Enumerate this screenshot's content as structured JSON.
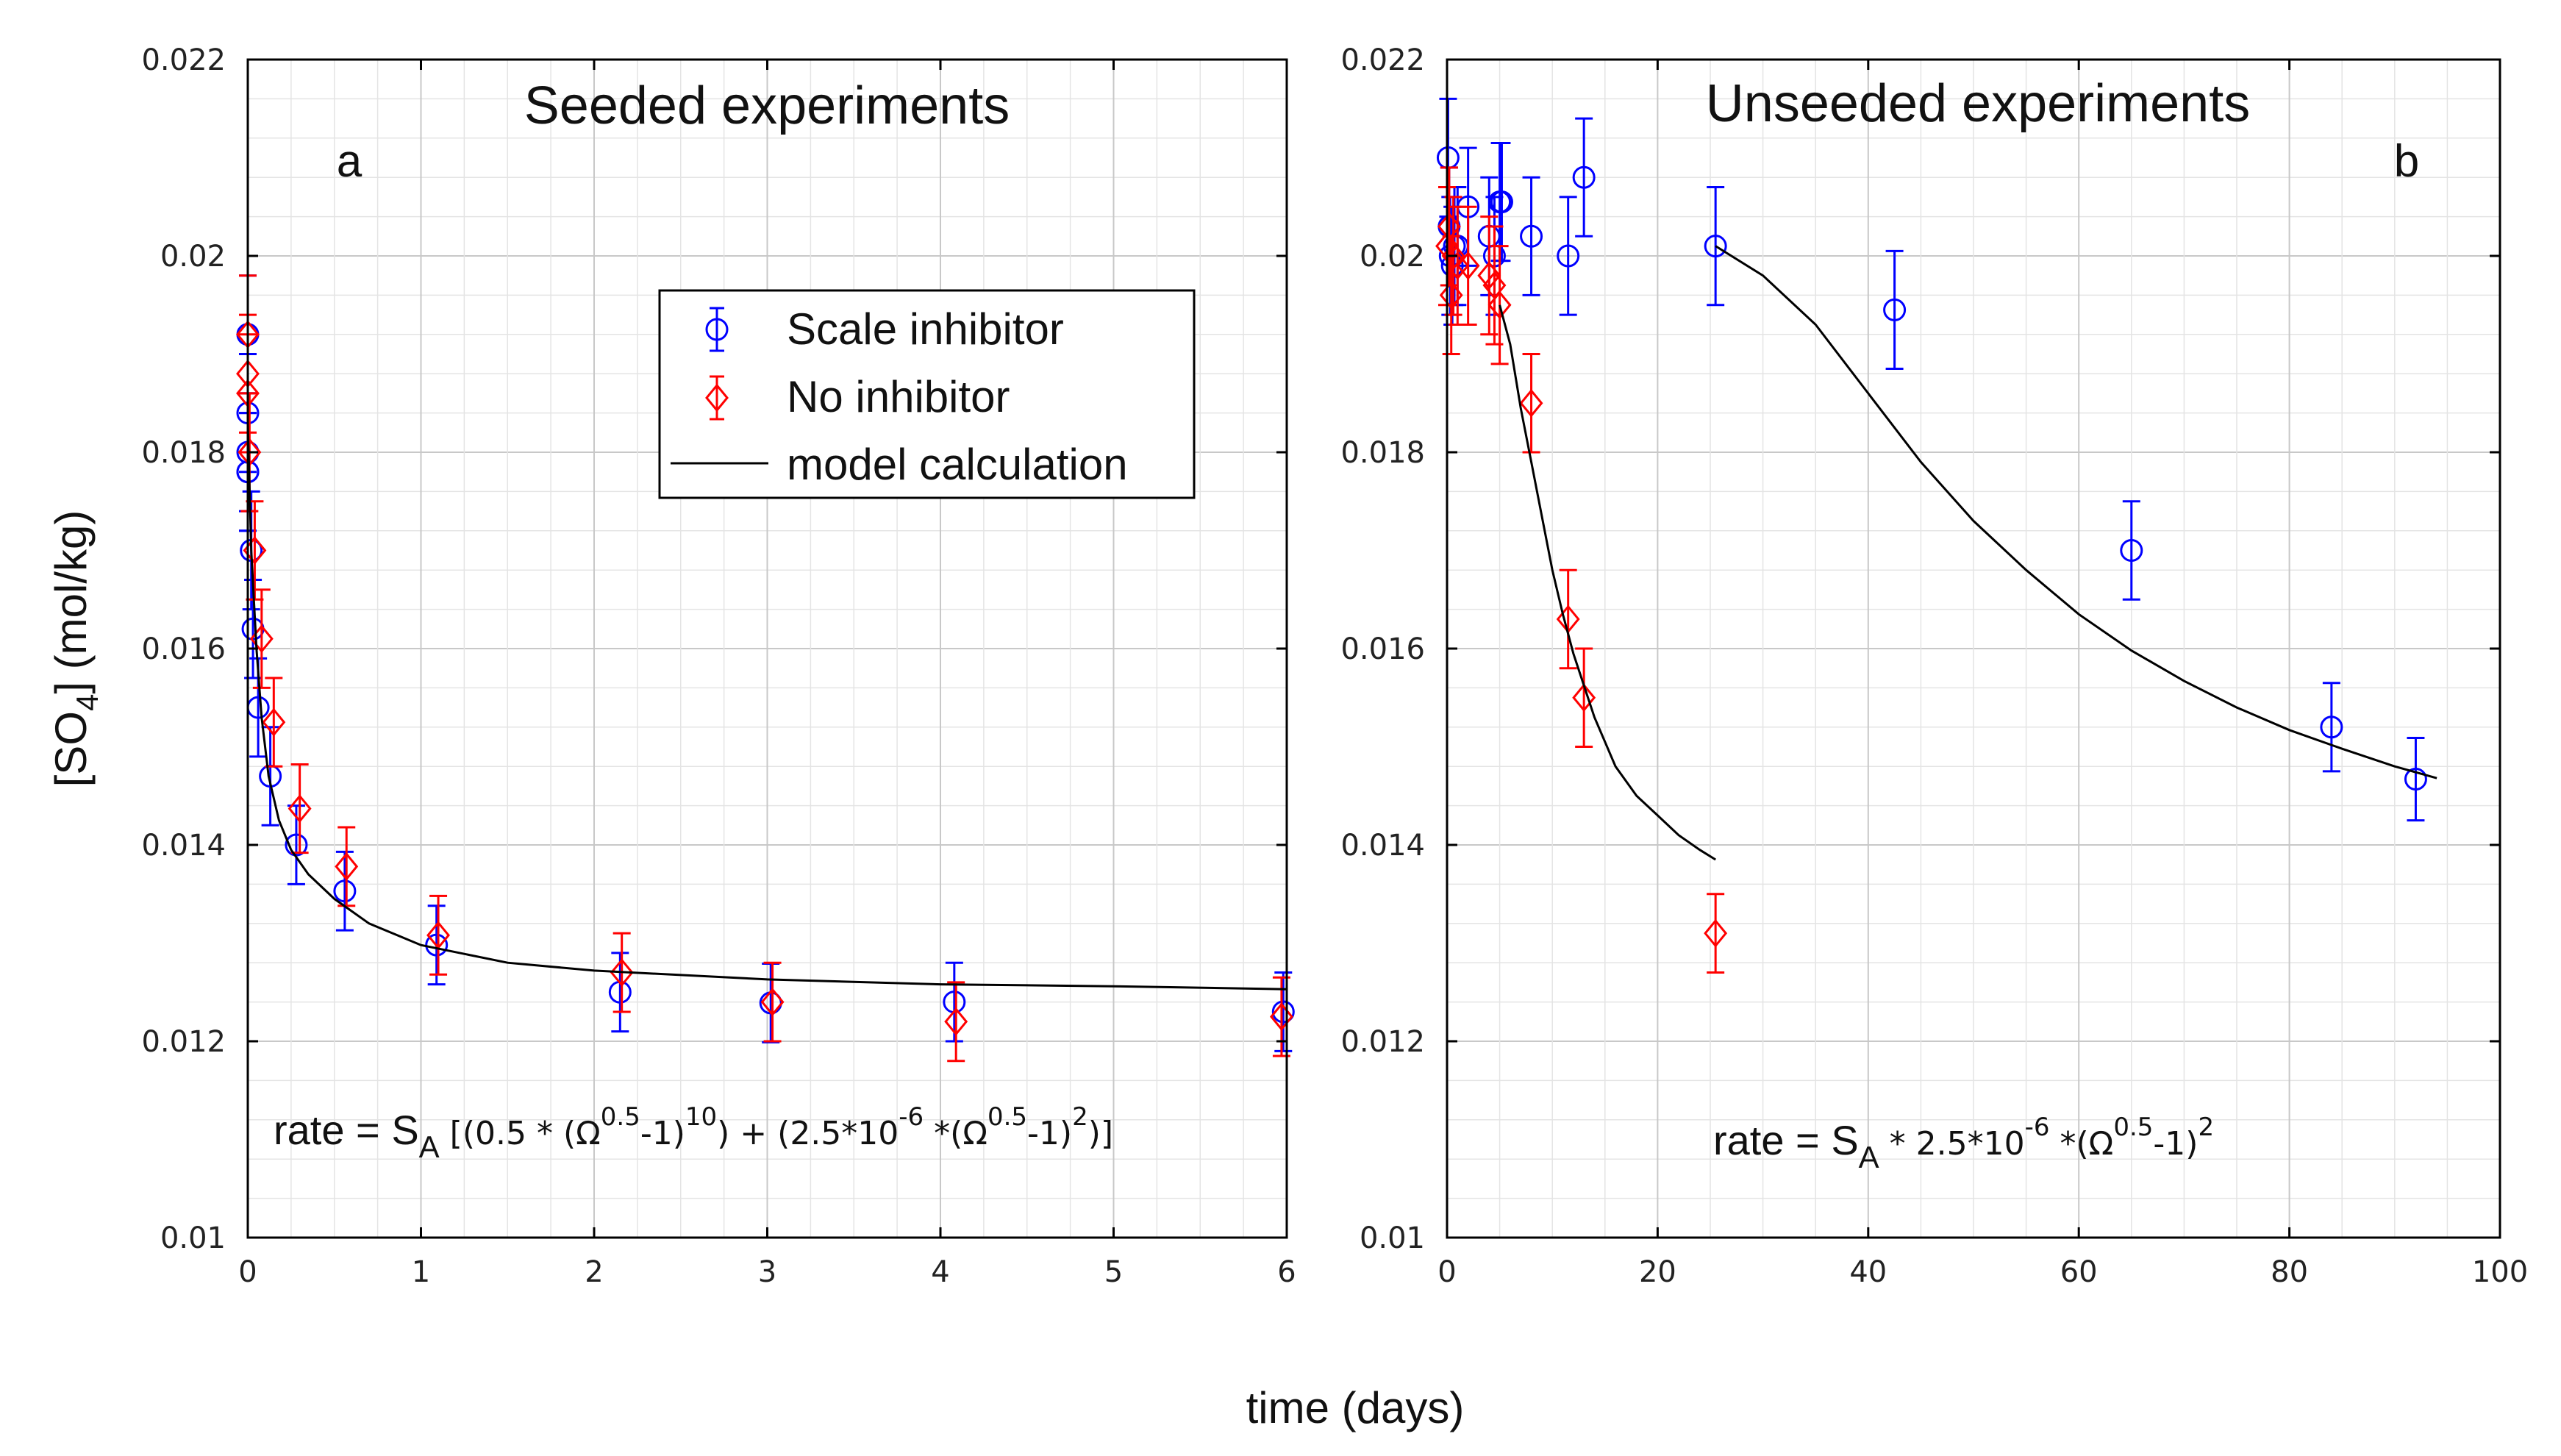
{
  "figure": {
    "xlabel": "time (days)",
    "ylabel": "[SO4] (mol/kg)",
    "ylabel_main": "[SO",
    "ylabel_sub": "4",
    "ylabel_tail": "] (mol/kg)"
  },
  "legend": {
    "items": [
      {
        "label": "Scale inhibitor",
        "color": "#0000ff",
        "marker": "circle"
      },
      {
        "label": "No inhibitor",
        "color": "#ff0000",
        "marker": "diamond"
      },
      {
        "label": "model calculation",
        "color": "#000000",
        "marker": "line"
      }
    ]
  },
  "chart_data": [
    {
      "type": "scatter",
      "title": "Seeded experiments",
      "panel_label": "a",
      "xlim": [
        0,
        6
      ],
      "ylim": [
        0.01,
        0.022
      ],
      "xticks": [
        0,
        1,
        2,
        3,
        4,
        5,
        6
      ],
      "xtick_labels": [
        "0",
        "1",
        "2",
        "3",
        "4",
        "5",
        "6"
      ],
      "yticks": [
        0.01,
        0.012,
        0.014,
        0.016,
        0.018,
        0.02,
        0.022
      ],
      "ytick_labels": [
        "0.01",
        "0.012",
        "0.014",
        "0.016",
        "0.018",
        "0.02",
        "0.022"
      ],
      "grid": true,
      "legend_placement": "upper-right",
      "formula": {
        "p1": "rate = S",
        "sub": "A",
        "p2": " [(0.5 * (Ω",
        "e1": "0.5",
        "p3": "-1)",
        "e2": "10",
        "p4": ") + (2.5*10",
        "e3": "-6",
        "p5": " *(Ω",
        "e4": "0.5",
        "p6": "-1)",
        "e5": "2",
        "p7": ")]"
      },
      "series": [
        {
          "name": "Scale inhibitor",
          "color": "#0000ff",
          "marker": "circle",
          "x": [
            0.0,
            0.0,
            0.0,
            0.0,
            0.0,
            0.02,
            0.03,
            0.06,
            0.13,
            0.28,
            0.56,
            1.09,
            2.15,
            3.02,
            4.08,
            5.98
          ],
          "y": [
            0.0192,
            0.0184,
            0.018,
            0.0178,
            0.0178,
            0.017,
            0.0162,
            0.0154,
            0.0147,
            0.014,
            0.01353,
            0.01298,
            0.0125,
            0.01239,
            0.0124,
            0.0123
          ],
          "err": [
            0.0006,
            0.0006,
            0.0006,
            0.0006,
            0.0006,
            0.0006,
            0.0005,
            0.0005,
            0.0005,
            0.0004,
            0.0004,
            0.0004,
            0.0004,
            0.0004,
            0.0004,
            0.0004
          ]
        },
        {
          "name": "No inhibitor",
          "color": "#ff0000",
          "marker": "diamond",
          "x": [
            0.0,
            0.0,
            0.0,
            0.01,
            0.04,
            0.08,
            0.15,
            0.3,
            0.57,
            1.1,
            2.16,
            3.03,
            4.09,
            5.97
          ],
          "y": [
            0.0192,
            0.0188,
            0.0186,
            0.018,
            0.017,
            0.0161,
            0.01525,
            0.01437,
            0.01378,
            0.01308,
            0.0127,
            0.0124,
            0.0122,
            0.01225
          ],
          "err": [
            0.0006,
            0.0006,
            0.0006,
            0.0006,
            0.0005,
            0.0005,
            0.00045,
            0.00045,
            0.0004,
            0.0004,
            0.0004,
            0.0004,
            0.0004,
            0.0004
          ]
        },
        {
          "name": "model calculation",
          "color": "#000000",
          "type": "line",
          "x": [
            0.0,
            0.02,
            0.05,
            0.08,
            0.12,
            0.18,
            0.25,
            0.35,
            0.5,
            0.7,
            1.0,
            1.5,
            2.0,
            3.0,
            4.0,
            5.0,
            6.0
          ],
          "y": [
            0.0183,
            0.017,
            0.016,
            0.0153,
            0.0147,
            0.01425,
            0.01395,
            0.0137,
            0.01345,
            0.0132,
            0.01298,
            0.0128,
            0.01272,
            0.01263,
            0.01258,
            0.01256,
            0.01253
          ]
        }
      ]
    },
    {
      "type": "scatter",
      "title": "Unseeded experiments",
      "panel_label": "b",
      "xlim": [
        0,
        100
      ],
      "ylim": [
        0.01,
        0.022
      ],
      "xticks": [
        0,
        20,
        40,
        60,
        80,
        100
      ],
      "xtick_labels": [
        "0",
        "20",
        "40",
        "60",
        "80",
        "100"
      ],
      "yticks": [
        0.01,
        0.012,
        0.014,
        0.016,
        0.018,
        0.02,
        0.022
      ],
      "ytick_labels": [
        "0.01",
        "0.012",
        "0.014",
        "0.016",
        "0.018",
        "0.02",
        "0.022"
      ],
      "grid": true,
      "formula": {
        "p1": "rate = S",
        "sub": "A",
        "p2": " * 2.5*10",
        "e1": "-6",
        "p3": " *(Ω",
        "e2": "0.5",
        "p4": "-1)",
        "e3": "2"
      },
      "series": [
        {
          "name": "Scale inhibitor",
          "color": "#0000ff",
          "marker": "circle",
          "x": [
            0.1,
            0.2,
            0.3,
            0.5,
            0.7,
            1.0,
            2.0,
            4.0,
            4.5,
            5.0,
            5.2,
            8.0,
            11.5,
            13.0,
            25.5,
            42.5,
            65.0,
            84.0,
            92.0
          ],
          "y": [
            0.021,
            0.0203,
            0.02,
            0.0199,
            0.0201,
            0.0201,
            0.0205,
            0.0202,
            0.02,
            0.02055,
            0.02055,
            0.0202,
            0.02,
            0.0208,
            0.0201,
            0.01945,
            0.017,
            0.0152,
            0.01467
          ],
          "err": [
            0.0006,
            0.0006,
            0.0006,
            0.0006,
            0.0006,
            0.0006,
            0.0006,
            0.0006,
            0.0006,
            0.0006,
            0.0006,
            0.0006,
            0.0006,
            0.0006,
            0.0006,
            0.0006,
            0.0005,
            0.00045,
            0.00042
          ]
        },
        {
          "name": "No inhibitor",
          "color": "#ff0000",
          "marker": "diamond",
          "x": [
            0.0,
            0.2,
            0.4,
            0.6,
            1.0,
            2.0,
            4.0,
            4.5,
            5.0,
            8.0,
            11.5,
            13.0,
            25.5
          ],
          "y": [
            0.0201,
            0.0203,
            0.0196,
            0.02,
            0.0199,
            0.0199,
            0.0198,
            0.0197,
            0.0195,
            0.0185,
            0.0163,
            0.0155,
            0.0131
          ],
          "err": [
            0.0006,
            0.0006,
            0.0006,
            0.0006,
            0.0006,
            0.0006,
            0.0006,
            0.0006,
            0.0006,
            0.0005,
            0.0005,
            0.0005,
            0.0004
          ]
        },
        {
          "name": "model calculation",
          "color": "#000000",
          "type": "line",
          "x": [
            5.0,
            6.0,
            7.0,
            8.0,
            9.0,
            10.0,
            11.0,
            12.0,
            14.0,
            16.0,
            18.0,
            20.0,
            22.0,
            24.0,
            25.5
          ],
          "y": [
            0.0195,
            0.0191,
            0.01845,
            0.0179,
            0.01735,
            0.0168,
            0.01635,
            0.01595,
            0.0153,
            0.0148,
            0.0145,
            0.0143,
            0.0141,
            0.01395,
            0.01385
          ]
        },
        {
          "name": "model calculation",
          "color": "#000000",
          "type": "line",
          "x": [
            25.5,
            30.0,
            35.0,
            40.0,
            45.0,
            50.0,
            55.0,
            60.0,
            65.0,
            70.0,
            75.0,
            80.0,
            85.0,
            90.0,
            94.0
          ],
          "y": [
            0.0201,
            0.0198,
            0.0193,
            0.0186,
            0.0179,
            0.0173,
            0.0168,
            0.01635,
            0.01598,
            0.01567,
            0.0154,
            0.01517,
            0.01498,
            0.0148,
            0.01468
          ]
        }
      ]
    }
  ]
}
